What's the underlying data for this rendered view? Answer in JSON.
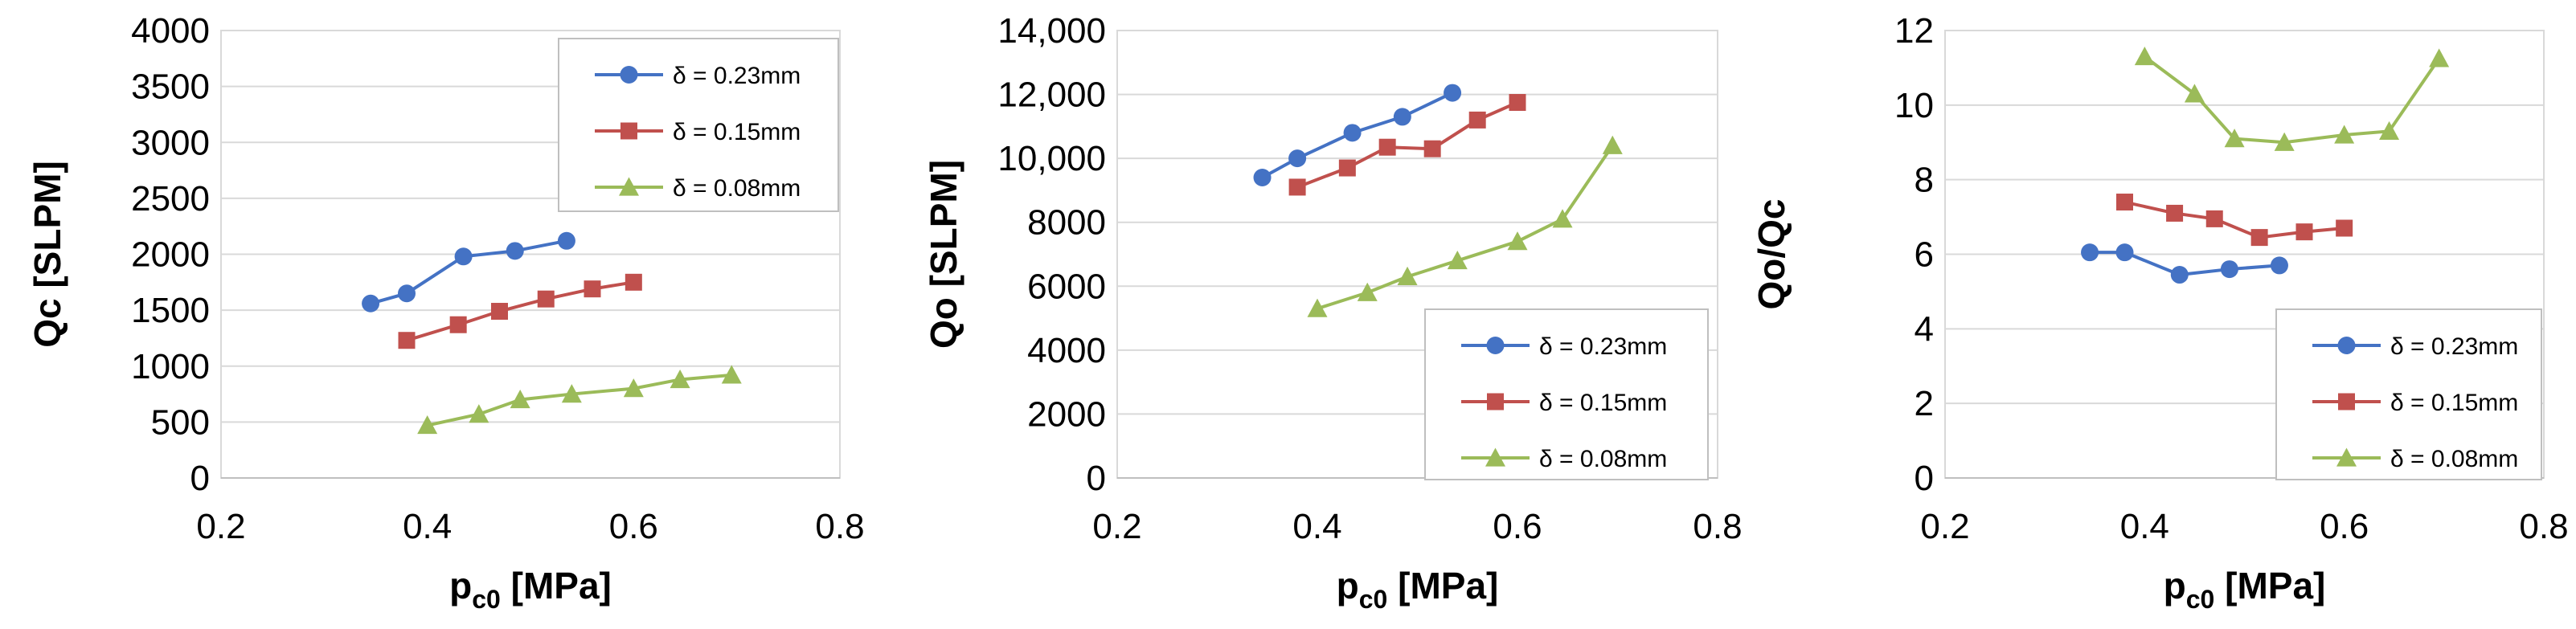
{
  "chart_data": [
    {
      "type": "line",
      "title": "",
      "ylabel": "Qc [SLPM]",
      "xlabel_main": "p",
      "xlabel_sub": "c0",
      "xlabel_unit": " [MPa]",
      "xlim": [
        0.2,
        0.8
      ],
      "xticks": [
        0.2,
        0.4,
        0.6,
        0.8
      ],
      "xtick_labels": [
        "0.2",
        "0.4",
        "0.6",
        "0.8"
      ],
      "ylim": [
        0,
        4000
      ],
      "yticks": [
        0,
        500,
        1000,
        1500,
        2000,
        2500,
        3000,
        3500,
        4000
      ],
      "ytick_labels": [
        "0",
        "500",
        "1000",
        "1500",
        "2000",
        "2500",
        "3000",
        "3500",
        "4000"
      ],
      "grid": "horizontal",
      "legend_position": "top-right",
      "series": [
        {
          "name": "δ = 0.23mm",
          "color": "#4472C4",
          "marker": "circle",
          "x": [
            0.345,
            0.38,
            0.435,
            0.485,
            0.535
          ],
          "y": [
            1560,
            1650,
            1980,
            2030,
            2120
          ]
        },
        {
          "name": "δ = 0.15mm",
          "color": "#C0504D",
          "marker": "square",
          "x": [
            0.38,
            0.43,
            0.47,
            0.515,
            0.56,
            0.6
          ],
          "y": [
            1230,
            1370,
            1490,
            1600,
            1690,
            1750
          ]
        },
        {
          "name": "δ = 0.08mm",
          "color": "#9BBB59",
          "marker": "triangle",
          "x": [
            0.4,
            0.45,
            0.49,
            0.54,
            0.6,
            0.645,
            0.695
          ],
          "y": [
            470,
            570,
            700,
            750,
            800,
            880,
            920
          ]
        }
      ]
    },
    {
      "type": "line",
      "title": "",
      "ylabel": "Qo [SLPM]",
      "xlabel_main": "p",
      "xlabel_sub": "c0",
      "xlabel_unit": " [MPa]",
      "xlim": [
        0.2,
        0.8
      ],
      "xticks": [
        0.2,
        0.4,
        0.6,
        0.8
      ],
      "xtick_labels": [
        "0.2",
        "0.4",
        "0.6",
        "0.8"
      ],
      "ylim": [
        0,
        14000
      ],
      "yticks": [
        0,
        2000,
        4000,
        6000,
        8000,
        10000,
        12000,
        14000
      ],
      "ytick_labels": [
        "0",
        "2000",
        "4000",
        "6000",
        "8000",
        "10,000",
        "12,000",
        "14,000"
      ],
      "grid": "horizontal",
      "legend_position": "bottom-right",
      "series": [
        {
          "name": "δ = 0.23mm",
          "color": "#4472C4",
          "marker": "circle",
          "x": [
            0.345,
            0.38,
            0.435,
            0.485,
            0.535
          ],
          "y": [
            9400,
            10000,
            10800,
            11300,
            12050
          ]
        },
        {
          "name": "δ = 0.15mm",
          "color": "#C0504D",
          "marker": "square",
          "x": [
            0.38,
            0.43,
            0.47,
            0.515,
            0.56,
            0.6
          ],
          "y": [
            9100,
            9700,
            10350,
            10300,
            11200,
            11750
          ]
        },
        {
          "name": "δ = 0.08mm",
          "color": "#9BBB59",
          "marker": "triangle",
          "x": [
            0.4,
            0.45,
            0.49,
            0.54,
            0.6,
            0.645,
            0.695
          ],
          "y": [
            5300,
            5800,
            6300,
            6800,
            7400,
            8100,
            10400
          ]
        }
      ]
    },
    {
      "type": "line",
      "title": "",
      "ylabel": "Qo/Qc",
      "xlabel_main": "p",
      "xlabel_sub": "c0",
      "xlabel_unit": " [MPa]",
      "xlim": [
        0.2,
        0.8
      ],
      "xticks": [
        0.2,
        0.4,
        0.6,
        0.8
      ],
      "xtick_labels": [
        "0.2",
        "0.4",
        "0.6",
        "0.8"
      ],
      "ylim": [
        0,
        12
      ],
      "yticks": [
        0,
        2,
        4,
        6,
        8,
        10,
        12
      ],
      "ytick_labels": [
        "0",
        "2",
        "4",
        "6",
        "8",
        "10",
        "12"
      ],
      "grid": "horizontal",
      "legend_position": "bottom-right",
      "series": [
        {
          "name": "δ = 0.23mm",
          "color": "#4472C4",
          "marker": "circle",
          "x": [
            0.345,
            0.38,
            0.435,
            0.485,
            0.535
          ],
          "y": [
            6.05,
            6.05,
            5.45,
            5.6,
            5.7
          ]
        },
        {
          "name": "δ = 0.15mm",
          "color": "#C0504D",
          "marker": "square",
          "x": [
            0.38,
            0.43,
            0.47,
            0.515,
            0.56,
            0.6
          ],
          "y": [
            7.4,
            7.1,
            6.95,
            6.45,
            6.6,
            6.7
          ]
        },
        {
          "name": "δ = 0.08mm",
          "color": "#9BBB59",
          "marker": "triangle",
          "x": [
            0.4,
            0.45,
            0.49,
            0.54,
            0.6,
            0.645,
            0.695
          ],
          "y": [
            11.3,
            10.3,
            9.1,
            9.0,
            9.2,
            9.3,
            11.25
          ]
        }
      ]
    }
  ]
}
